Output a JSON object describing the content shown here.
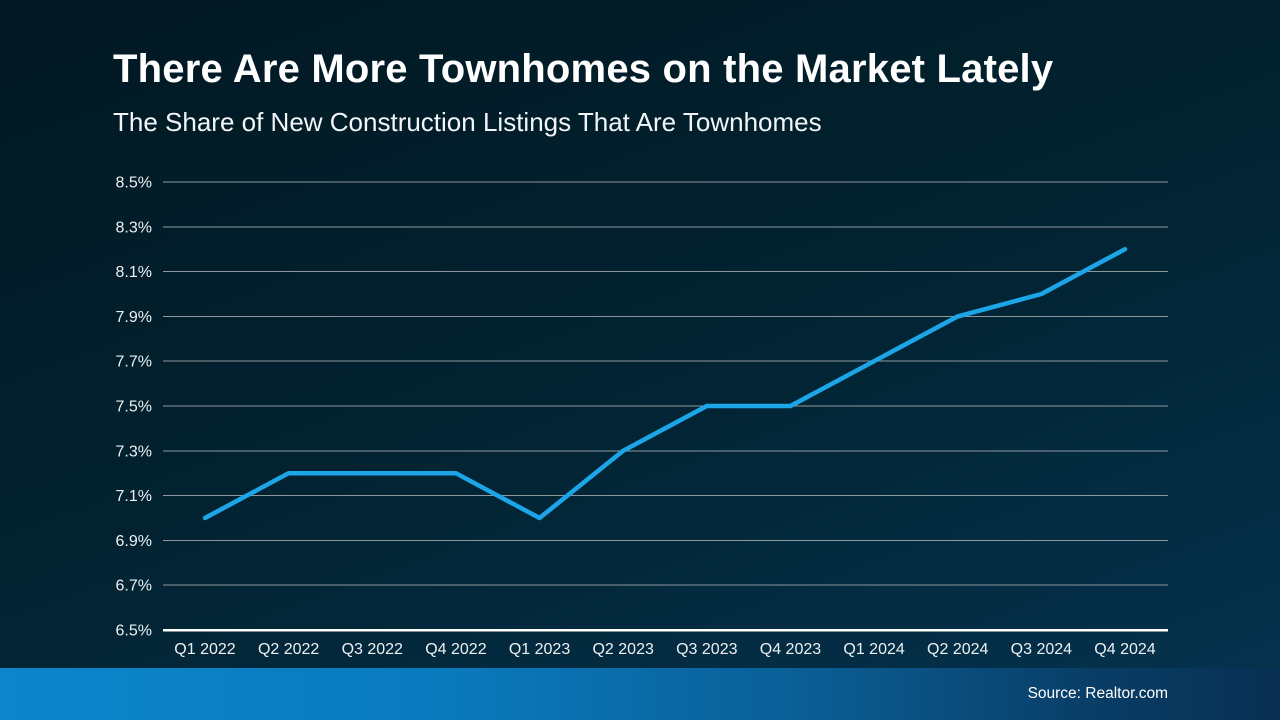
{
  "header": {
    "title": "There Are More Townhomes on the Market Lately",
    "subtitle": "The Share of New Construction Listings That Are Townhomes"
  },
  "footer": {
    "source": "Source: Realtor.com"
  },
  "colors": {
    "background_top": "#021822",
    "background_bottom": "#053350",
    "line": "#1ca6e8",
    "gridline": "#8d979e",
    "axis_line": "#ffffff",
    "tick_text": "#edf1f3",
    "footer_bar_left": "#0c85cb",
    "footer_bar_right": "#082f51"
  },
  "chart_data": {
    "type": "line",
    "title": "There Are More Townhomes on the Market Lately",
    "subtitle": "The Share of New Construction Listings That Are Townhomes",
    "source": "Source: Realtor.com",
    "categories": [
      "Q1 2022",
      "Q2 2022",
      "Q3 2022",
      "Q4 2022",
      "Q1 2023",
      "Q2 2023",
      "Q3 2023",
      "Q4 2023",
      "Q1 2024",
      "Q2 2024",
      "Q3 2024",
      "Q4 2024"
    ],
    "series": [
      {
        "name": "Share of new construction listings that are townhomes",
        "values": [
          7.0,
          7.2,
          7.2,
          7.2,
          7.0,
          7.3,
          7.5,
          7.5,
          7.7,
          7.9,
          8.0,
          8.2
        ]
      }
    ],
    "unit": "%",
    "xlabel": "",
    "ylabel": "",
    "ylim": [
      6.5,
      8.5
    ],
    "ytick_step": 0.2,
    "ytick_labels": [
      "8.5%",
      "8.3%",
      "8.1%",
      "7.9%",
      "7.7%",
      "7.5%",
      "7.3%",
      "7.1%",
      "6.9%",
      "6.7%",
      "6.5%"
    ],
    "grid": "horizontal-only",
    "legend": "none",
    "line_color": "#1ca6e8"
  }
}
